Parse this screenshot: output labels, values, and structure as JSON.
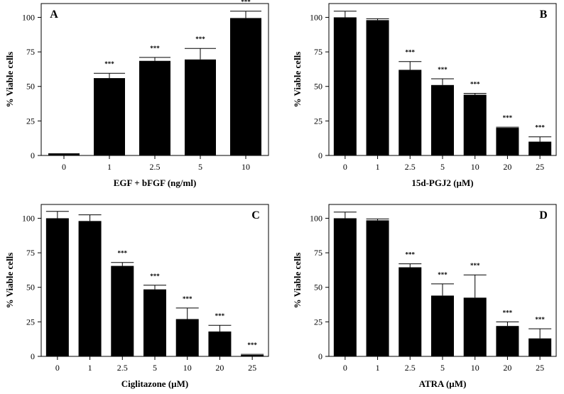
{
  "chart_data": [
    {
      "type": "bar",
      "panel": "A",
      "title": "",
      "xlabel": "EGF + bFGF (ng/ml)",
      "ylabel": "% Viable cells",
      "ylim": [
        0,
        110
      ],
      "yticks": [
        0,
        25,
        50,
        75,
        100
      ],
      "categories": [
        "0",
        "1",
        "2.5",
        "5",
        "10"
      ],
      "values": [
        1,
        56,
        68.5,
        69.5,
        99.5
      ],
      "errors": [
        0.3,
        3.5,
        2.5,
        8,
        5
      ],
      "significance": [
        "",
        "***",
        "***",
        "***",
        "***"
      ],
      "grid": false
    },
    {
      "type": "bar",
      "panel": "B",
      "title": "",
      "xlabel": "15d-PGJ2 (µM)",
      "ylabel": "% Viable cells",
      "ylim": [
        0,
        110
      ],
      "yticks": [
        0,
        25,
        50,
        75,
        100
      ],
      "categories": [
        "0",
        "1",
        "2.5",
        "5",
        "10",
        "20",
        "25"
      ],
      "values": [
        100,
        98,
        62,
        51,
        44,
        20,
        10
      ],
      "errors": [
        4.5,
        1,
        6,
        4.5,
        1,
        0.5,
        3.5
      ],
      "significance": [
        "",
        "",
        "***",
        "***",
        "***",
        "***",
        "***"
      ],
      "grid": false
    },
    {
      "type": "bar",
      "panel": "C",
      "title": "",
      "xlabel": "Ciglitazone (µM)",
      "ylabel": "% Viable cells",
      "ylim": [
        0,
        110
      ],
      "yticks": [
        0,
        25,
        50,
        75,
        100
      ],
      "categories": [
        "0",
        "1",
        "2.5",
        "5",
        "10",
        "20",
        "25"
      ],
      "values": [
        100,
        98,
        65.5,
        48.5,
        27,
        18,
        1
      ],
      "errors": [
        5,
        4.5,
        2.5,
        3,
        8,
        4.5,
        0.5
      ],
      "significance": [
        "",
        "",
        "***",
        "***",
        "***",
        "***",
        "***"
      ],
      "grid": false
    },
    {
      "type": "bar",
      "panel": "D",
      "title": "",
      "xlabel": "ATRA (µM)",
      "ylabel": "% Viable cells",
      "ylim": [
        0,
        110
      ],
      "yticks": [
        0,
        25,
        50,
        75,
        100
      ],
      "categories": [
        "0",
        "1",
        "2.5",
        "5",
        "10",
        "20",
        "25"
      ],
      "values": [
        100,
        98.5,
        64.5,
        44,
        42.5,
        22,
        13
      ],
      "errors": [
        4.5,
        1,
        2.5,
        8.5,
        16.5,
        3,
        7
      ],
      "significance": [
        "",
        "",
        "***",
        "***",
        "***",
        "***",
        "***"
      ],
      "grid": false
    }
  ]
}
